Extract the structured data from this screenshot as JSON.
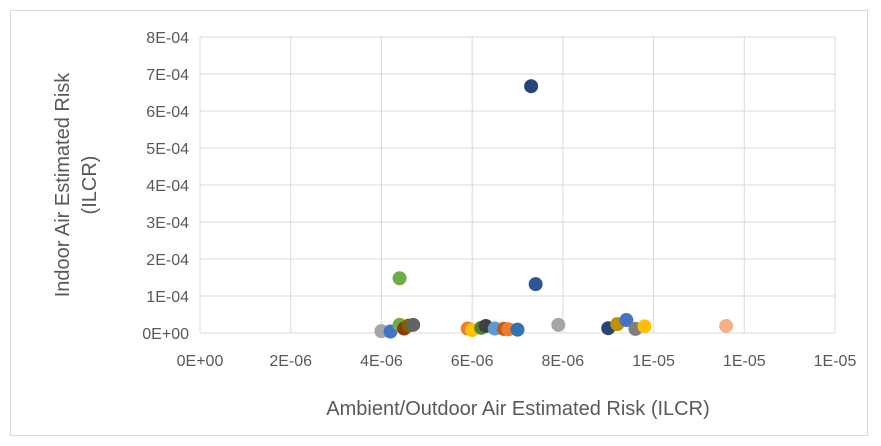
{
  "chart_data": {
    "type": "scatter",
    "title": "",
    "xlabel": "Ambient/Outdoor Air Estimated Risk (ILCR)",
    "ylabel_lines": [
      "Indoor Air Estimated Risk",
      "(ILCR)"
    ],
    "x_tick_labels": [
      "0E+00",
      "2E-06",
      "4E-06",
      "6E-06",
      "8E-06",
      "1E-05",
      "1E-05",
      "1E-05"
    ],
    "x_ticks": [
      0,
      2e-06,
      4e-06,
      6e-06,
      8e-06,
      1e-05,
      1.2e-05,
      1.4e-05
    ],
    "y_tick_labels": [
      "0E+00",
      "1E-04",
      "2E-04",
      "3E-04",
      "4E-04",
      "5E-04",
      "6E-04",
      "7E-04",
      "8E-04"
    ],
    "y_ticks": [
      0,
      0.0001,
      0.0002,
      0.0003,
      0.0004,
      0.0005,
      0.0006,
      0.0007,
      0.0008
    ],
    "xlim": [
      0,
      1.4e-05
    ],
    "ylim": [
      0,
      0.0008
    ],
    "grid": true,
    "legend": "none",
    "points": [
      {
        "x": 7.3e-06,
        "y": 0.000667,
        "color": "#264478"
      },
      {
        "x": 7.4e-06,
        "y": 0.000132,
        "color": "#2f5597"
      },
      {
        "x": 4.4e-06,
        "y": 0.000148,
        "color": "#70ad47"
      },
      {
        "x": 4e-06,
        "y": 5e-06,
        "color": "#a5a5a5"
      },
      {
        "x": 4.2e-06,
        "y": 4e-06,
        "color": "#4472c4"
      },
      {
        "x": 4.4e-06,
        "y": 2.2e-05,
        "color": "#70ad47"
      },
      {
        "x": 4.5e-06,
        "y": 1.2e-05,
        "color": "#843c0c"
      },
      {
        "x": 4.6e-06,
        "y": 2e-05,
        "color": "#806000"
      },
      {
        "x": 4.7e-06,
        "y": 2.2e-05,
        "color": "#636363"
      },
      {
        "x": 5.9e-06,
        "y": 1.2e-05,
        "color": "#ed7d31"
      },
      {
        "x": 6e-06,
        "y": 8e-06,
        "color": "#ffc000"
      },
      {
        "x": 6.2e-06,
        "y": 1.4e-05,
        "color": "#548235"
      },
      {
        "x": 6.3e-06,
        "y": 1.9e-05,
        "color": "#404040"
      },
      {
        "x": 6.5e-06,
        "y": 1.2e-05,
        "color": "#5b9bd5"
      },
      {
        "x": 6.7e-06,
        "y": 1.1e-05,
        "color": "#c55a11"
      },
      {
        "x": 6.8e-06,
        "y": 1e-05,
        "color": "#ed7d31"
      },
      {
        "x": 7e-06,
        "y": 9e-06,
        "color": "#2e75b6"
      },
      {
        "x": 7.9e-06,
        "y": 2.2e-05,
        "color": "#a5a5a5"
      },
      {
        "x": 9e-06,
        "y": 1.3e-05,
        "color": "#264478"
      },
      {
        "x": 9.2e-06,
        "y": 2.4e-05,
        "color": "#bf9000"
      },
      {
        "x": 9.4e-06,
        "y": 3.5e-05,
        "color": "#4472c4"
      },
      {
        "x": 9.6e-06,
        "y": 1.1e-05,
        "color": "#7f7f7f"
      },
      {
        "x": 9.8e-06,
        "y": 1.8e-05,
        "color": "#ffc000"
      },
      {
        "x": 1.16e-05,
        "y": 1.9e-05,
        "color": "#f4b183"
      }
    ]
  }
}
